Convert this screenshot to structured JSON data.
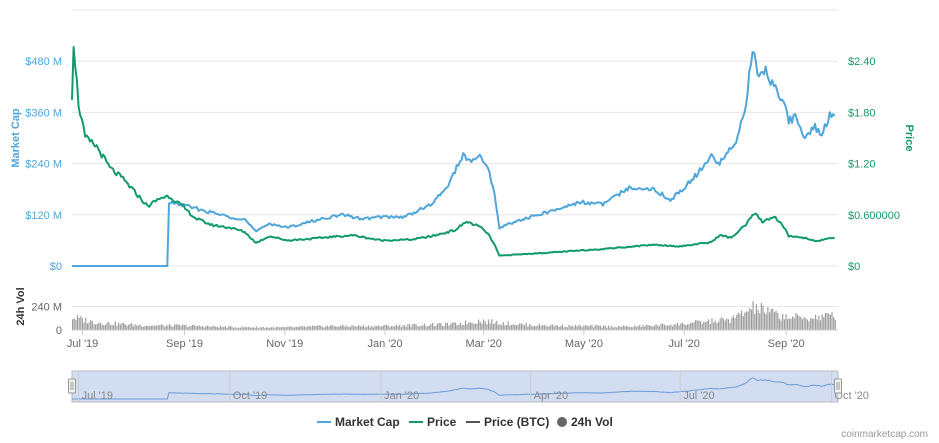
{
  "chart_data": {
    "type": "line",
    "colors": {
      "market_cap": "#4FA6DA",
      "price": "#119B6A",
      "price_btc": "#555555",
      "volume": "#9E9E9E",
      "navigator_fill": "#D3DDF2",
      "navigator_line": "#6A9BD8",
      "grid": "#E6E6E6"
    },
    "left_axis": {
      "label": "Market Cap",
      "range": [
        0,
        600
      ],
      "ticks": [
        {
          "value": 0,
          "label": "$0"
        },
        {
          "value": 120,
          "label": "$120 M"
        },
        {
          "value": 240,
          "label": "$240 M"
        },
        {
          "value": 360,
          "label": "$360 M"
        },
        {
          "value": 480,
          "label": "$480 M"
        }
      ]
    },
    "right_axis": {
      "label": "Price",
      "range": [
        0,
        3.0
      ],
      "ticks": [
        {
          "value": 0,
          "label": "$0"
        },
        {
          "value": 0.6,
          "label": "$0.600000"
        },
        {
          "value": 1.2,
          "label": "$1.20"
        },
        {
          "value": 1.8,
          "label": "$1.80"
        },
        {
          "value": 2.4,
          "label": "$2.40"
        }
      ]
    },
    "volume_axis": {
      "label": "24h Vol",
      "range": [
        0,
        480
      ],
      "ticks": [
        {
          "value": 0,
          "label": "0"
        },
        {
          "value": 240,
          "label": "240 M"
        }
      ]
    },
    "x_axis": {
      "domain": [
        "2019-07-01",
        "2020-10-05"
      ],
      "ticks": [
        {
          "date": "2019-07-01",
          "label": "Jul '19"
        },
        {
          "date": "2019-09-01",
          "label": "Sep '19"
        },
        {
          "date": "2019-11-01",
          "label": "Nov '19"
        },
        {
          "date": "2020-01-01",
          "label": "Jan '20"
        },
        {
          "date": "2020-03-01",
          "label": "Mar '20"
        },
        {
          "date": "2020-05-01",
          "label": "May '20"
        },
        {
          "date": "2020-07-01",
          "label": "Jul '20"
        },
        {
          "date": "2020-09-01",
          "label": "Sep '20"
        }
      ]
    },
    "navigator_ticks": [
      {
        "date": "2019-07-01",
        "label": "Jul '19"
      },
      {
        "date": "2019-10-01",
        "label": "Oct '19"
      },
      {
        "date": "2020-01-01",
        "label": "Jan '20"
      },
      {
        "date": "2020-04-01",
        "label": "Apr '20"
      },
      {
        "date": "2020-07-01",
        "label": "Jul '20"
      },
      {
        "date": "2020-10-01",
        "label": "Oct '20"
      }
    ],
    "series": [
      {
        "name": "Market Cap",
        "key": "market_cap",
        "axis": "left",
        "points": [
          [
            "2019-06-27",
            0
          ],
          [
            "2019-08-24",
            0
          ],
          [
            "2019-08-25",
            150
          ],
          [
            "2019-09-05",
            140
          ],
          [
            "2019-09-20",
            125
          ],
          [
            "2019-10-01",
            115
          ],
          [
            "2019-10-10",
            110
          ],
          [
            "2019-10-17",
            80
          ],
          [
            "2019-10-25",
            100
          ],
          [
            "2019-11-05",
            90
          ],
          [
            "2019-11-20",
            105
          ],
          [
            "2019-12-01",
            115
          ],
          [
            "2019-12-10",
            120
          ],
          [
            "2019-12-20",
            110
          ],
          [
            "2020-01-01",
            115
          ],
          [
            "2020-01-15",
            115
          ],
          [
            "2020-02-01",
            145
          ],
          [
            "2020-02-10",
            185
          ],
          [
            "2020-02-20",
            260
          ],
          [
            "2020-02-25",
            240
          ],
          [
            "2020-03-01",
            260
          ],
          [
            "2020-03-06",
            230
          ],
          [
            "2020-03-10",
            170
          ],
          [
            "2020-03-13",
            90
          ],
          [
            "2020-03-20",
            100
          ],
          [
            "2020-04-01",
            115
          ],
          [
            "2020-04-15",
            130
          ],
          [
            "2020-05-01",
            150
          ],
          [
            "2020-05-15",
            145
          ],
          [
            "2020-06-01",
            185
          ],
          [
            "2020-06-15",
            180
          ],
          [
            "2020-06-25",
            155
          ],
          [
            "2020-07-01",
            175
          ],
          [
            "2020-07-10",
            210
          ],
          [
            "2020-07-20",
            255
          ],
          [
            "2020-07-25",
            240
          ],
          [
            "2020-08-01",
            280
          ],
          [
            "2020-08-05",
            300
          ],
          [
            "2020-08-10",
            380
          ],
          [
            "2020-08-14",
            510
          ],
          [
            "2020-08-17",
            450
          ],
          [
            "2020-08-22",
            460
          ],
          [
            "2020-08-27",
            420
          ],
          [
            "2020-09-02",
            390
          ],
          [
            "2020-09-05",
            340
          ],
          [
            "2020-09-10",
            350
          ],
          [
            "2020-09-15",
            295
          ],
          [
            "2020-09-20",
            330
          ],
          [
            "2020-09-25",
            310
          ],
          [
            "2020-09-30",
            350
          ],
          [
            "2020-10-03",
            345
          ]
        ]
      },
      {
        "name": "Price",
        "key": "price",
        "axis": "right",
        "points": [
          [
            "2019-06-27",
            2.0
          ],
          [
            "2019-06-28",
            2.62
          ],
          [
            "2019-07-01",
            1.9
          ],
          [
            "2019-07-05",
            1.5
          ],
          [
            "2019-07-12",
            1.4
          ],
          [
            "2019-07-20",
            1.15
          ],
          [
            "2019-07-28",
            1.02
          ],
          [
            "2019-08-05",
            0.85
          ],
          [
            "2019-08-12",
            0.7
          ],
          [
            "2019-08-20",
            0.8
          ],
          [
            "2019-08-25",
            0.82
          ],
          [
            "2019-09-01",
            0.72
          ],
          [
            "2019-09-10",
            0.56
          ],
          [
            "2019-09-20",
            0.48
          ],
          [
            "2019-10-01",
            0.45
          ],
          [
            "2019-10-10",
            0.4
          ],
          [
            "2019-10-17",
            0.27
          ],
          [
            "2019-10-25",
            0.35
          ],
          [
            "2019-11-05",
            0.3
          ],
          [
            "2019-11-20",
            0.32
          ],
          [
            "2019-12-01",
            0.34
          ],
          [
            "2019-12-15",
            0.36
          ],
          [
            "2020-01-01",
            0.3
          ],
          [
            "2020-01-20",
            0.31
          ],
          [
            "2020-02-01",
            0.35
          ],
          [
            "2020-02-15",
            0.42
          ],
          [
            "2020-02-22",
            0.52
          ],
          [
            "2020-03-01",
            0.46
          ],
          [
            "2020-03-06",
            0.38
          ],
          [
            "2020-03-10",
            0.25
          ],
          [
            "2020-03-13",
            0.12
          ],
          [
            "2020-03-20",
            0.13
          ],
          [
            "2020-04-15",
            0.16
          ],
          [
            "2020-05-15",
            0.2
          ],
          [
            "2020-06-15",
            0.25
          ],
          [
            "2020-07-01",
            0.23
          ],
          [
            "2020-07-20",
            0.28
          ],
          [
            "2020-07-25",
            0.36
          ],
          [
            "2020-08-01",
            0.33
          ],
          [
            "2020-08-10",
            0.48
          ],
          [
            "2020-08-15",
            0.62
          ],
          [
            "2020-08-20",
            0.52
          ],
          [
            "2020-08-27",
            0.58
          ],
          [
            "2020-09-02",
            0.46
          ],
          [
            "2020-09-05",
            0.35
          ],
          [
            "2020-09-15",
            0.33
          ],
          [
            "2020-09-20",
            0.3
          ],
          [
            "2020-09-25",
            0.3
          ],
          [
            "2020-10-03",
            0.33
          ]
        ]
      },
      {
        "name": "Price (BTC)",
        "key": "price_btc",
        "axis": "none",
        "points": []
      },
      {
        "name": "24h Vol",
        "key": "volume",
        "axis": "volume",
        "points": [
          [
            "2019-06-27",
            130
          ],
          [
            "2019-07-10",
            80
          ],
          [
            "2019-08-01",
            55
          ],
          [
            "2019-08-15",
            45
          ],
          [
            "2019-09-01",
            45
          ],
          [
            "2019-10-01",
            30
          ],
          [
            "2019-11-01",
            25
          ],
          [
            "2019-12-01",
            40
          ],
          [
            "2020-01-01",
            40
          ],
          [
            "2020-02-15",
            60
          ],
          [
            "2020-03-01",
            95
          ],
          [
            "2020-03-15",
            70
          ],
          [
            "2020-04-01",
            50
          ],
          [
            "2020-05-01",
            40
          ],
          [
            "2020-06-01",
            35
          ],
          [
            "2020-07-01",
            60
          ],
          [
            "2020-08-01",
            110
          ],
          [
            "2020-08-15",
            230
          ],
          [
            "2020-09-01",
            140
          ],
          [
            "2020-09-15",
            120
          ],
          [
            "2020-10-03",
            150
          ]
        ]
      }
    ],
    "legend": {
      "placement": "bottom-center",
      "items": [
        {
          "label": "Market Cap",
          "key": "market_cap",
          "symbol": "line"
        },
        {
          "label": "Price",
          "key": "price",
          "symbol": "line"
        },
        {
          "label": "Price (BTC)",
          "key": "price_btc",
          "symbol": "line"
        },
        {
          "label": "24h Vol",
          "key": "volume",
          "symbol": "dot"
        }
      ]
    },
    "grid": true
  },
  "credit": "coinmarketcap.com"
}
